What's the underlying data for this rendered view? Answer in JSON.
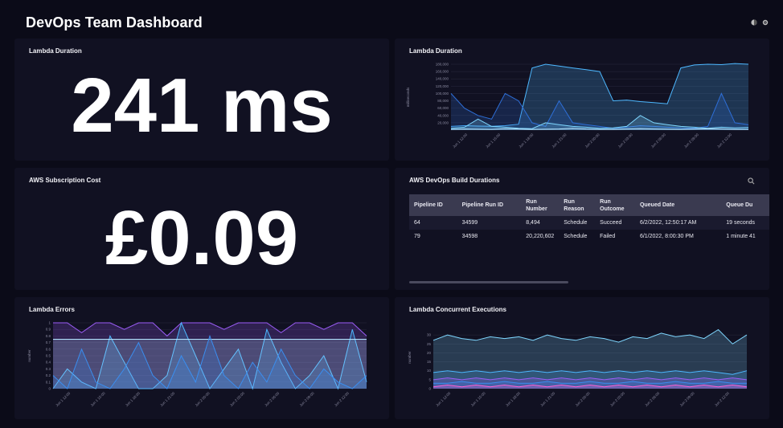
{
  "header": {
    "title": "DevOps Team Dashboard",
    "icons": [
      "theme-icon",
      "settings-icon"
    ]
  },
  "lambda_duration_stat": {
    "title": "Lambda Duration",
    "value": "241 ms"
  },
  "subscription_cost": {
    "title": "AWS Subscription Cost",
    "value": "£0.09"
  },
  "build_durations": {
    "title": "AWS DevOps Build Durations",
    "columns": [
      "Pipeline ID",
      "Pipeline Run ID",
      "Run Number",
      "Run Reason",
      "Run Outcome",
      "Queued Date",
      "Queue Du"
    ],
    "rows": [
      [
        "64",
        "34599",
        "8,494",
        "Schedule",
        "Succeed",
        "6/2/2022, 12:50:17 AM",
        "19 seconds"
      ],
      [
        "79",
        "34598",
        "20,220,602",
        "Schedule",
        "Failed",
        "6/1/2022, 8:00:30 PM",
        "1 minute 41"
      ]
    ]
  },
  "colors": {
    "background": "#0b0b18",
    "panel": "#111122",
    "accent_blue": "#4db8ff",
    "accent_purple": "#9b5cf6"
  },
  "chart_data": [
    {
      "type": "area",
      "title": "Lambda Duration",
      "ylabel": "milliseconds",
      "ylim": [
        0,
        180000
      ],
      "yticks": [
        "20,000",
        "40,000",
        "60,000",
        "80,000",
        "100,000",
        "120,000",
        "140,000",
        "160,000",
        "180,000"
      ],
      "xticks": [
        "Jun 1 12:00",
        "Jun 1 15:00",
        "Jun 1 18:00",
        "Jun 1 21:00",
        "Jun 2 00:00",
        "Jun 2 03:00",
        "Jun 2 06:00",
        "Jun 2 09:00",
        "Jun 2 12:00"
      ],
      "series": [
        {
          "color": "#4db8ff",
          "values": [
            10000,
            12000,
            11000,
            10500,
            12000,
            16000,
            170000,
            180000,
            175000,
            170000,
            165000,
            160000,
            80000,
            82000,
            78000,
            75000,
            72000,
            170000,
            178000,
            180000,
            179000,
            182000,
            180000
          ]
        },
        {
          "color": "#2e6fd8",
          "values": [
            100000,
            60000,
            40000,
            30000,
            100000,
            80000,
            20000,
            10000,
            80000,
            20000,
            15000,
            10000,
            5000,
            8000,
            12000,
            10000,
            8000,
            6000,
            5000,
            10000,
            100000,
            20000,
            15000
          ]
        },
        {
          "color": "#7fd7ff",
          "values": [
            5000,
            8000,
            30000,
            10000,
            8000,
            5000,
            4000,
            20000,
            15000,
            10000,
            8000,
            5000,
            6000,
            10000,
            40000,
            20000,
            15000,
            10000,
            8000,
            5000,
            8000,
            6000,
            7000
          ]
        },
        {
          "color": "#b4e4ff",
          "values": [
            2000,
            3000,
            2500,
            2000,
            4000,
            3000,
            2000,
            2500,
            3000,
            5000,
            3000,
            2000,
            2000,
            3000,
            4000,
            3000,
            2500,
            2000,
            3000,
            4000,
            3000,
            2000,
            2000
          ]
        }
      ]
    },
    {
      "type": "area",
      "title": "Lambda Errors",
      "ylabel": "number",
      "ylim": [
        0,
        1
      ],
      "yticks": [
        "0",
        "0.1",
        "0.2",
        "0.3",
        "0.4",
        "0.5",
        "0.6",
        "0.7",
        "0.8",
        "0.9",
        "1"
      ],
      "xticks": [
        "Jun 1 12:00",
        "Jun 1 15:00",
        "Jun 1 18:00",
        "Jun 1 21:00",
        "Jun 2 00:00",
        "Jun 2 03:00",
        "Jun 2 06:00",
        "Jun 2 09:00",
        "Jun 2 12:00"
      ],
      "series": [
        {
          "color": "#9b5cf6",
          "values": [
            1,
            1,
            0.85,
            1,
            1,
            0.9,
            1,
            1,
            0.8,
            1,
            1,
            1,
            0.9,
            1,
            1,
            1,
            0.85,
            1,
            1,
            0.9,
            1,
            1,
            0.8
          ]
        },
        {
          "color": "#4db8ff",
          "values": [
            0,
            0.3,
            0.1,
            0,
            0.8,
            0.4,
            0,
            0,
            0.2,
            1,
            0.5,
            0,
            0.3,
            0.6,
            0,
            0.9,
            0.4,
            0,
            0.2,
            0.5,
            0,
            0.9,
            0.1
          ]
        },
        {
          "color": "#b4e4ff",
          "values": [
            0.75,
            0.75,
            0.75,
            0.75,
            0.75,
            0.75,
            0.75,
            0.75,
            0.75,
            0.75,
            0.75,
            0.75,
            0.75,
            0.75,
            0.75,
            0.75,
            0.75,
            0.75,
            0.75,
            0.75,
            0.75,
            0.75,
            0.75
          ]
        },
        {
          "color": "#3a8ef0",
          "values": [
            0.2,
            0,
            0.6,
            0.1,
            0,
            0.3,
            0.7,
            0.2,
            0,
            0.5,
            0.1,
            0.8,
            0.2,
            0,
            0.4,
            0.1,
            0.6,
            0.2,
            0,
            0.3,
            0.1,
            0,
            0.2
          ]
        }
      ]
    },
    {
      "type": "area",
      "title": "Lambda Concurrent Executions",
      "ylabel": "number",
      "ylim": [
        0,
        35
      ],
      "yticks": [
        "0",
        "5",
        "10",
        "15",
        "20",
        "25",
        "30"
      ],
      "xticks": [
        "Jun 1 12:00",
        "Jun 1 15:00",
        "Jun 1 18:00",
        "Jun 1 21:00",
        "Jun 2 00:00",
        "Jun 2 03:00",
        "Jun 2 06:00",
        "Jun 2 09:00",
        "Jun 2 12:00"
      ],
      "series": [
        {
          "color": "#7fd7ff",
          "values": [
            27,
            30,
            28,
            27,
            29,
            28,
            29,
            27,
            30,
            28,
            27,
            29,
            28,
            26,
            29,
            28,
            31,
            29,
            30,
            28,
            33,
            25,
            30
          ]
        },
        {
          "color": "#4db8ff",
          "values": [
            9,
            10,
            9,
            10,
            9,
            10,
            9,
            10,
            9,
            10,
            9,
            10,
            9,
            10,
            9,
            10,
            9,
            10,
            9,
            10,
            9,
            8,
            10
          ]
        },
        {
          "color": "#9b5cf6",
          "values": [
            5,
            6,
            5,
            6,
            5,
            6,
            5,
            6,
            5,
            6,
            5,
            6,
            5,
            6,
            5,
            6,
            5,
            6,
            5,
            6,
            5,
            6,
            5
          ]
        },
        {
          "color": "#3a8ef0",
          "values": [
            3,
            3,
            4,
            3,
            3,
            4,
            3,
            3,
            4,
            3,
            3,
            4,
            3,
            3,
            4,
            3,
            3,
            4,
            3,
            3,
            4,
            3,
            3
          ]
        },
        {
          "color": "#ff5fd2",
          "values": [
            1,
            2,
            1,
            2,
            1,
            2,
            1,
            2,
            1,
            2,
            1,
            2,
            1,
            2,
            1,
            2,
            1,
            2,
            1,
            2,
            1,
            2,
            1
          ]
        }
      ]
    }
  ]
}
